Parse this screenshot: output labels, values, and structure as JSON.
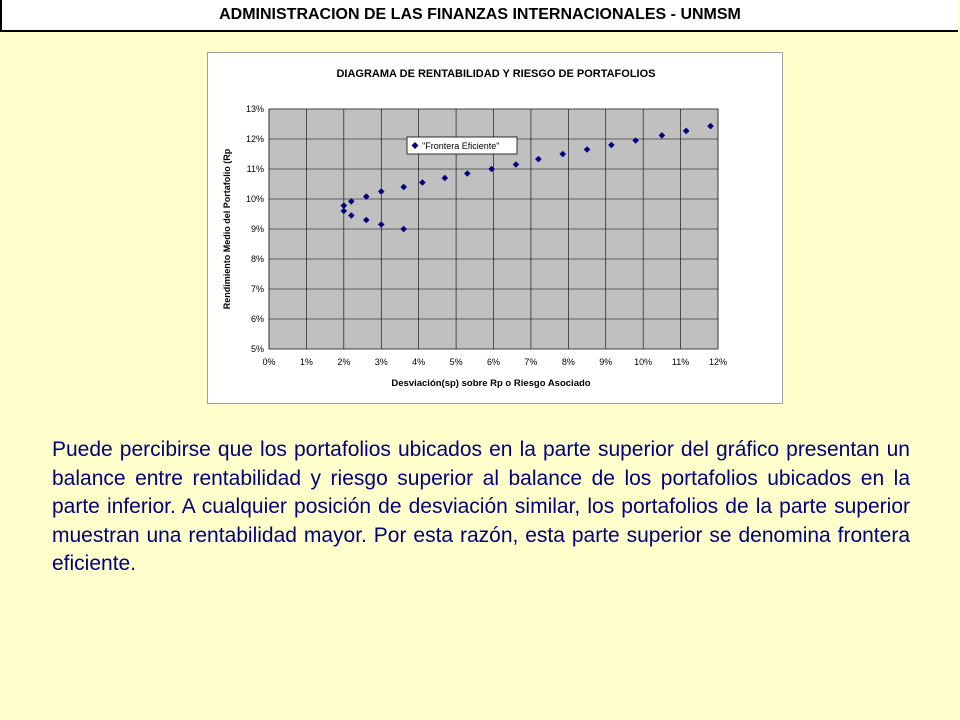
{
  "header": {
    "title": "ADMINISTRACION DE LAS FINANZAS INTERNACIONALES - UNMSM"
  },
  "colors": {
    "slide_background": "#FFFFCC",
    "plot_background": "#C0C0C0",
    "marker": "#000080",
    "text": "#000080"
  },
  "chart_data": {
    "type": "scatter",
    "title": "DIAGRAMA DE RENTABILIDAD Y RIESGO DE PORTAFOLIOS",
    "xlabel": "Desviación(sp) sobre Rp o Riesgo Asociado",
    "ylabel": "Rendimiento Medio del Portafolio (Rp",
    "xlim": [
      0,
      12
    ],
    "ylim": [
      5,
      13
    ],
    "x_ticks": [
      "0%",
      "1%",
      "2%",
      "3%",
      "4%",
      "5%",
      "6%",
      "7%",
      "8%",
      "9%",
      "10%",
      "11%",
      "12%"
    ],
    "y_ticks": [
      "5%",
      "6%",
      "7%",
      "8%",
      "9%",
      "10%",
      "11%",
      "12%",
      "13%"
    ],
    "grid": true,
    "legend_position": "top-left",
    "series": [
      {
        "name": "\"Frontera Eficiente\"",
        "marker": "diamond",
        "points": [
          {
            "x": 3.6,
            "y": 9.0
          },
          {
            "x": 3.0,
            "y": 9.15
          },
          {
            "x": 2.6,
            "y": 9.3
          },
          {
            "x": 2.2,
            "y": 9.45
          },
          {
            "x": 2.0,
            "y": 9.6
          },
          {
            "x": 2.0,
            "y": 9.78
          },
          {
            "x": 2.2,
            "y": 9.92
          },
          {
            "x": 2.6,
            "y": 10.08
          },
          {
            "x": 3.0,
            "y": 10.25
          },
          {
            "x": 3.6,
            "y": 10.4
          },
          {
            "x": 4.1,
            "y": 10.55
          },
          {
            "x": 4.7,
            "y": 10.7
          },
          {
            "x": 5.3,
            "y": 10.85
          },
          {
            "x": 5.95,
            "y": 11.0
          },
          {
            "x": 6.6,
            "y": 11.15
          },
          {
            "x": 7.2,
            "y": 11.33
          },
          {
            "x": 7.85,
            "y": 11.5
          },
          {
            "x": 8.5,
            "y": 11.65
          },
          {
            "x": 9.15,
            "y": 11.8
          },
          {
            "x": 9.8,
            "y": 11.95
          },
          {
            "x": 10.5,
            "y": 12.12
          },
          {
            "x": 11.15,
            "y": 12.27
          },
          {
            "x": 11.8,
            "y": 12.43
          }
        ]
      }
    ]
  },
  "body_text": "Puede percibirse que los portafolios ubicados en la parte superior del gráfico presentan un balance entre rentabilidad y riesgo superior al balance de los portafolios ubicados en la parte  inferior. A cualquier posición de desviación similar, los portafolios de la parte superior muestran una rentabilidad mayor. Por esta razón, esta parte superior se denomina frontera eficiente."
}
